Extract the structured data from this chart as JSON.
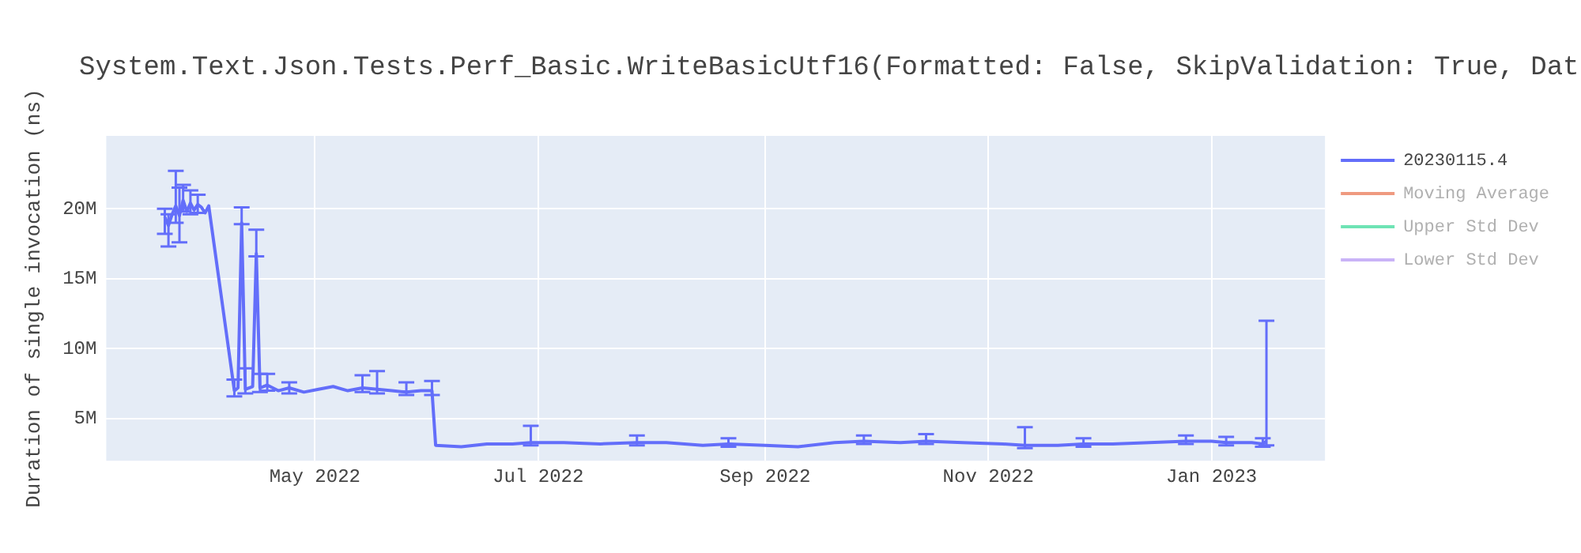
{
  "chart_data": {
    "type": "line",
    "title": "System.Text.Json.Tests.Perf_Basic.WriteBasicUtf16(Formatted: False, SkipValidation: True, Dat",
    "ylabel": "Duration of single invocation (ns)",
    "x": [
      "2022-03-21",
      "2022-03-22",
      "2022-03-23",
      "2022-03-24",
      "2022-03-25",
      "2022-03-26",
      "2022-03-27",
      "2022-03-28",
      "2022-03-29",
      "2022-03-30",
      "2022-03-31",
      "2022-04-01",
      "2022-04-02",
      "2022-04-09",
      "2022-04-10",
      "2022-04-11",
      "2022-04-12",
      "2022-04-14",
      "2022-04-15",
      "2022-04-16",
      "2022-04-18",
      "2022-04-21",
      "2022-04-24",
      "2022-04-28",
      "2022-05-02",
      "2022-05-06",
      "2022-05-10",
      "2022-05-14",
      "2022-05-18",
      "2022-05-22",
      "2022-05-26",
      "2022-05-30",
      "2022-06-02",
      "2022-06-03",
      "2022-06-10",
      "2022-06-17",
      "2022-06-24",
      "2022-06-29",
      "2022-07-08",
      "2022-07-18",
      "2022-07-28",
      "2022-08-05",
      "2022-08-15",
      "2022-08-22",
      "2022-09-01",
      "2022-09-10",
      "2022-09-20",
      "2022-09-28",
      "2022-10-08",
      "2022-10-15",
      "2022-10-25",
      "2022-11-05",
      "2022-11-11",
      "2022-11-20",
      "2022-11-27",
      "2022-12-05",
      "2022-12-15",
      "2022-12-25",
      "2023-01-01",
      "2023-01-05",
      "2023-01-12",
      "2023-01-15",
      "2023-01-16"
    ],
    "series": [
      {
        "name": "20230115.4",
        "color": "#636efa",
        "values": [
          19400000,
          18800000,
          19600000,
          20200000,
          19500000,
          20600000,
          19800000,
          20400000,
          19900000,
          20300000,
          20100000,
          19700000,
          20200000,
          7000000,
          7200000,
          19000000,
          7100000,
          7300000,
          16800000,
          7200000,
          7400000,
          7000000,
          7200000,
          6900000,
          7100000,
          7300000,
          7000000,
          7200000,
          7100000,
          7000000,
          6900000,
          7000000,
          7000000,
          3100000,
          3000000,
          3200000,
          3200000,
          3300000,
          3300000,
          3200000,
          3300000,
          3300000,
          3100000,
          3200000,
          3100000,
          3000000,
          3300000,
          3400000,
          3300000,
          3400000,
          3300000,
          3200000,
          3100000,
          3100000,
          3200000,
          3200000,
          3300000,
          3400000,
          3400000,
          3300000,
          3300000,
          3200000,
          3400000
        ],
        "errors": [
          [
            18200000,
            20000000
          ],
          [
            17300000,
            19600000
          ],
          null,
          [
            19000000,
            22700000
          ],
          [
            17600000,
            21500000
          ],
          [
            19800000,
            21700000
          ],
          null,
          [
            19600000,
            21300000
          ],
          null,
          [
            19700000,
            21000000
          ],
          null,
          null,
          null,
          [
            6600000,
            7800000
          ],
          null,
          [
            18900000,
            20100000
          ],
          [
            6800000,
            8600000
          ],
          null,
          [
            16600000,
            18500000
          ],
          [
            6900000,
            8200000
          ],
          [
            7000000,
            8200000
          ],
          null,
          [
            6800000,
            7600000
          ],
          null,
          null,
          null,
          null,
          [
            6900000,
            8100000
          ],
          [
            6800000,
            8400000
          ],
          null,
          [
            6700000,
            7600000
          ],
          null,
          [
            6700000,
            7700000
          ],
          null,
          null,
          null,
          null,
          [
            3100000,
            4500000
          ],
          null,
          null,
          [
            3100000,
            3800000
          ],
          null,
          null,
          [
            3000000,
            3600000
          ],
          null,
          null,
          null,
          [
            3200000,
            3800000
          ],
          null,
          [
            3200000,
            3900000
          ],
          null,
          null,
          [
            2900000,
            4400000
          ],
          null,
          [
            3000000,
            3600000
          ],
          null,
          null,
          [
            3200000,
            3800000
          ],
          null,
          [
            3100000,
            3700000
          ],
          null,
          [
            3000000,
            3600000
          ],
          [
            3100000,
            12000000
          ]
        ]
      },
      {
        "name": "Moving Average",
        "color": "#ef9a80",
        "values": [
          null,
          null,
          null,
          null,
          null,
          null,
          null,
          null,
          null,
          null,
          null,
          null,
          null,
          null,
          null,
          null,
          null,
          null,
          null,
          null,
          null,
          null,
          null,
          null,
          null,
          null,
          null,
          null,
          null,
          null,
          null,
          null,
          null,
          null,
          null,
          null,
          null,
          null,
          null,
          null,
          null,
          null,
          null,
          null,
          null,
          null,
          null,
          null,
          null,
          null,
          null,
          null,
          null,
          null,
          null,
          null,
          null,
          null,
          null,
          null,
          null,
          null,
          null
        ]
      },
      {
        "name": "Upper Std Dev",
        "color": "#6ee3b4",
        "values": [
          null,
          null,
          null,
          null,
          null,
          null,
          null,
          null,
          null,
          null,
          null,
          null,
          null,
          null,
          null,
          null,
          null,
          null,
          null,
          null,
          null,
          null,
          null,
          null,
          null,
          null,
          null,
          null,
          null,
          null,
          null,
          null,
          null,
          null,
          null,
          null,
          null,
          null,
          null,
          null,
          null,
          null,
          null,
          null,
          null,
          null,
          null,
          null,
          null,
          null,
          null,
          null,
          null,
          null,
          null,
          null,
          null,
          null,
          null,
          null,
          null,
          null,
          null
        ]
      },
      {
        "name": "Lower Std Dev",
        "color": "#c9b3f7",
        "values": [
          null,
          null,
          null,
          null,
          null,
          null,
          null,
          null,
          null,
          null,
          null,
          null,
          null,
          null,
          null,
          null,
          null,
          null,
          null,
          null,
          null,
          null,
          null,
          null,
          null,
          null,
          null,
          null,
          null,
          null,
          null,
          null,
          null,
          null,
          null,
          null,
          null,
          null,
          null,
          null,
          null,
          null,
          null,
          null,
          null,
          null,
          null,
          null,
          null,
          null,
          null,
          null,
          null,
          null,
          null,
          null,
          null,
          null,
          null,
          null,
          null,
          null,
          null
        ]
      }
    ],
    "xlim": [
      "2022-03-05",
      "2023-02-01"
    ],
    "xticks": [
      {
        "value": "2022-05-01",
        "label": "May 2022"
      },
      {
        "value": "2022-07-01",
        "label": "Jul 2022"
      },
      {
        "value": "2022-09-01",
        "label": "Sep 2022"
      },
      {
        "value": "2022-11-01",
        "label": "Nov 2022"
      },
      {
        "value": "2023-01-01",
        "label": "Jan 2023"
      }
    ],
    "ylim": [
      2000000,
      25200000
    ],
    "yticks": [
      {
        "value": 5000000,
        "label": "5M"
      },
      {
        "value": 10000000,
        "label": "10M"
      },
      {
        "value": 15000000,
        "label": "15M"
      },
      {
        "value": 20000000,
        "label": "20M"
      }
    ],
    "grid": true,
    "legend": "top right",
    "marker": "none",
    "line_style": "solid"
  }
}
